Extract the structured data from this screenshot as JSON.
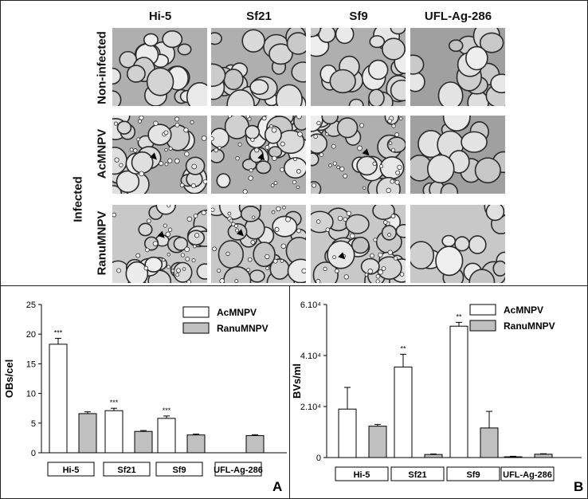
{
  "micrographs": {
    "columns": [
      "Hi-5",
      "Sf21",
      "Sf9",
      "UFL-Ag-286"
    ],
    "rows": [
      "Non-infected",
      "AcMNPV",
      "RanuMNPV"
    ],
    "infected_label": "Infected"
  },
  "chart_data": [
    {
      "type": "bar",
      "panel": "A",
      "ylabel": "OBs/cel",
      "ylim": [
        0,
        25
      ],
      "yticks": [
        "0",
        "5",
        "10",
        "15",
        "20",
        "25"
      ],
      "categories": [
        "Hi-5",
        "Sf21",
        "Sf9",
        "UFL-Ag-286"
      ],
      "series": [
        {
          "name": "AcMNPV",
          "color": "#ffffff",
          "values": [
            18.3,
            7.1,
            5.8,
            0
          ],
          "errors": [
            1.0,
            0.4,
            0.4,
            0
          ]
        },
        {
          "name": "RanuMNPV",
          "color": "#c0c0c0",
          "values": [
            6.6,
            3.6,
            3.0,
            2.9
          ],
          "errors": [
            0.3,
            0.15,
            0.15,
            0.15
          ]
        }
      ],
      "annotations": [
        "***",
        "***",
        "***",
        ""
      ],
      "legend": "top-right",
      "grid": false
    },
    {
      "type": "bar",
      "panel": "B",
      "ylabel": "BVs/ml",
      "ylim": [
        0,
        60000
      ],
      "yticks": [
        "0",
        "2.10⁴",
        "4.10⁴",
        "6.10⁴"
      ],
      "categories": [
        "Hi-5",
        "Sf21",
        "Sf9",
        "UFL-Ag-286"
      ],
      "series": [
        {
          "name": "AcMNPV",
          "color": "#ffffff",
          "values": [
            19000,
            35500,
            51500,
            300
          ],
          "errors": [
            8500,
            5000,
            1500,
            200
          ]
        },
        {
          "name": "RanuMNPV",
          "color": "#c0c0c0",
          "values": [
            12300,
            1200,
            11600,
            1300
          ],
          "errors": [
            700,
            200,
            6500,
            200
          ]
        }
      ],
      "annotations": [
        "",
        "**",
        "**",
        ""
      ],
      "legend": "top-right",
      "grid": false
    }
  ]
}
